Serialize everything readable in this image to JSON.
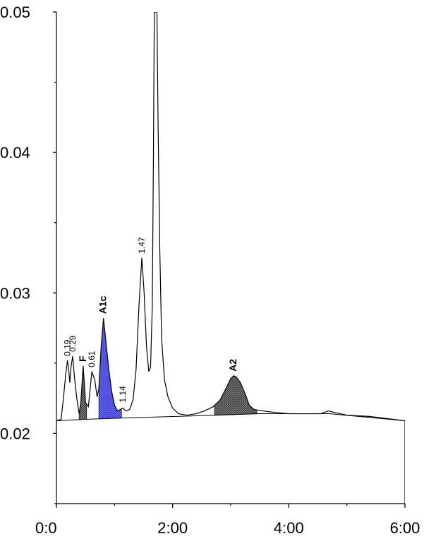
{
  "chart_data": {
    "type": "line",
    "title": "",
    "xlabel": "",
    "ylabel": "",
    "x_unit": "m:ss",
    "xlim": [
      0,
      6
    ],
    "ylim": [
      0.015,
      0.05
    ],
    "x_ticks": [
      {
        "value": 0,
        "label": "0:0"
      },
      {
        "value": 2,
        "label": "2:00"
      },
      {
        "value": 4,
        "label": "4:00"
      },
      {
        "value": 6,
        "label": "6:00"
      }
    ],
    "y_ticks": [
      {
        "value": 0.02,
        "label": "0.02"
      },
      {
        "value": 0.03,
        "label": "0.03"
      },
      {
        "value": 0.04,
        "label": "0.04"
      },
      {
        "value": 0.05,
        "label": "0.05"
      }
    ],
    "baseline": [
      [
        0.0,
        0.0209
      ],
      [
        0.5,
        0.021
      ],
      [
        1.2,
        0.0211
      ],
      [
        2.0,
        0.0212
      ],
      [
        2.8,
        0.0213
      ],
      [
        3.5,
        0.0214
      ],
      [
        4.7,
        0.0214
      ],
      [
        6.0,
        0.0209
      ]
    ],
    "series": [
      {
        "points": [
          [
            0.0,
            0.0209
          ],
          [
            0.08,
            0.021
          ],
          [
            0.12,
            0.0225
          ],
          [
            0.16,
            0.0242
          ],
          [
            0.19,
            0.0252
          ],
          [
            0.21,
            0.0246
          ],
          [
            0.23,
            0.0236
          ],
          [
            0.25,
            0.0247
          ],
          [
            0.28,
            0.0255
          ],
          [
            0.31,
            0.024
          ],
          [
            0.35,
            0.0225
          ],
          [
            0.39,
            0.0214
          ],
          [
            0.42,
            0.0222
          ],
          [
            0.46,
            0.0248
          ],
          [
            0.48,
            0.0236
          ],
          [
            0.5,
            0.0222
          ],
          [
            0.55,
            0.0219
          ],
          [
            0.61,
            0.0244
          ],
          [
            0.66,
            0.0238
          ],
          [
            0.7,
            0.0226
          ],
          [
            0.73,
            0.0232
          ],
          [
            0.77,
            0.0262
          ],
          [
            0.81,
            0.0282
          ],
          [
            0.85,
            0.0266
          ],
          [
            0.9,
            0.0246
          ],
          [
            0.95,
            0.023
          ],
          [
            1.0,
            0.022
          ],
          [
            1.05,
            0.0216
          ],
          [
            1.1,
            0.0217
          ],
          [
            1.14,
            0.0218
          ],
          [
            1.2,
            0.0216
          ],
          [
            1.26,
            0.0217
          ],
          [
            1.32,
            0.0224
          ],
          [
            1.37,
            0.0245
          ],
          [
            1.42,
            0.029
          ],
          [
            1.47,
            0.0325
          ],
          [
            1.51,
            0.03
          ],
          [
            1.55,
            0.0262
          ],
          [
            1.59,
            0.0244
          ],
          [
            1.62,
            0.0247
          ],
          [
            1.65,
            0.029
          ],
          [
            1.67,
            0.04
          ],
          [
            1.685,
            0.05
          ],
          [
            1.73,
            0.05
          ],
          [
            1.75,
            0.042
          ],
          [
            1.78,
            0.033
          ],
          [
            1.81,
            0.0268
          ],
          [
            1.86,
            0.0238
          ],
          [
            1.92,
            0.0226
          ],
          [
            2.0,
            0.0218
          ],
          [
            2.1,
            0.0214
          ],
          [
            2.25,
            0.0213
          ],
          [
            2.4,
            0.0214
          ],
          [
            2.55,
            0.0216
          ],
          [
            2.7,
            0.0219
          ],
          [
            2.82,
            0.0224
          ],
          [
            2.92,
            0.0232
          ],
          [
            3.0,
            0.0239
          ],
          [
            3.05,
            0.0241
          ],
          [
            3.1,
            0.024
          ],
          [
            3.17,
            0.0236
          ],
          [
            3.25,
            0.0228
          ],
          [
            3.32,
            0.022
          ],
          [
            3.4,
            0.0217
          ],
          [
            3.55,
            0.0216
          ],
          [
            3.75,
            0.0215
          ],
          [
            4.0,
            0.0214
          ],
          [
            4.3,
            0.0214
          ],
          [
            4.55,
            0.0214
          ],
          [
            4.68,
            0.0216
          ],
          [
            4.78,
            0.0215
          ],
          [
            5.0,
            0.0213
          ],
          [
            5.4,
            0.0212
          ],
          [
            5.8,
            0.021
          ],
          [
            6.0,
            0.0209
          ]
        ]
      }
    ],
    "filled_peaks": [
      {
        "label": "A1c",
        "x_start": 0.73,
        "x_end": 1.12,
        "color": "#5a5af0",
        "pattern": "crosshatch-blue"
      },
      {
        "label": "A2",
        "x_start": 2.72,
        "x_end": 3.45,
        "color": "#606060",
        "pattern": "crosshatch-gray"
      },
      {
        "label": "",
        "x_start": 0.39,
        "x_end": 0.52,
        "color": "#606060",
        "pattern": "crosshatch-gray"
      }
    ],
    "peak_labels": [
      {
        "text": "0.19",
        "x": 0.19,
        "y": 0.0253,
        "bold": false
      },
      {
        "text": "0.29",
        "x": 0.28,
        "y": 0.0256,
        "bold": false
      },
      {
        "text": "F",
        "x": 0.46,
        "y": 0.0249,
        "bold": true
      },
      {
        "text": "0.61",
        "x": 0.61,
        "y": 0.0245,
        "bold": false
      },
      {
        "text": "A1c",
        "x": 0.81,
        "y": 0.0283,
        "bold": true
      },
      {
        "text": "1.14",
        "x": 1.14,
        "y": 0.022,
        "bold": false
      },
      {
        "text": "1.47",
        "x": 1.47,
        "y": 0.0326,
        "bold": false
      },
      {
        "text": "A2",
        "x": 3.05,
        "y": 0.0242,
        "bold": true
      }
    ],
    "grid": false,
    "legend": "none"
  }
}
